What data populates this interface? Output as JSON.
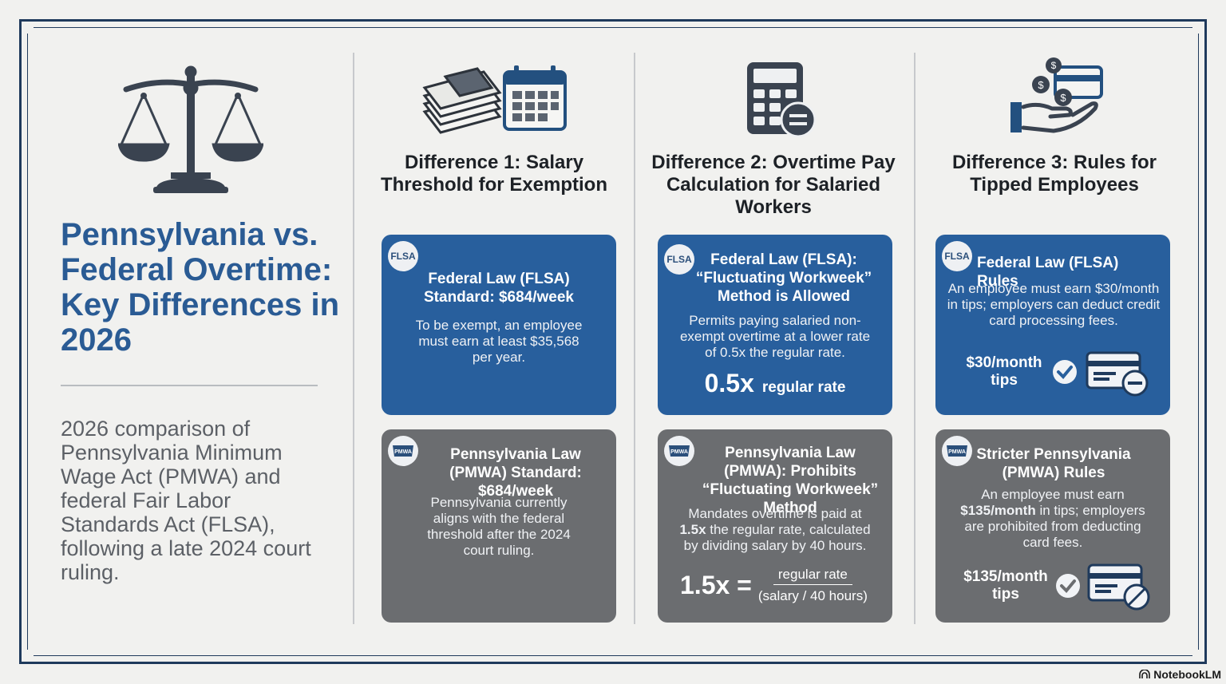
{
  "title": "Pennsylvania vs. Federal Overtime: Key Differences in 2026",
  "subtitle": "2026 comparison of Pennsylvania Minimum Wage Act (PMWA) and federal Fair Labor Standards Act (FLSA), following a late 2024 court ruling.",
  "columns": [
    {
      "heading": "Difference 1: Salary Threshold for Exemption",
      "icon": "money-calendar-icon",
      "federal": {
        "badge": "FLSA",
        "title": "Federal Law (FLSA) Standard: $684/week",
        "body": "To be exempt, an employee must earn at least $35,568 per year."
      },
      "state": {
        "badge": "PMWA",
        "title": "Pennsylvania Law (PMWA) Standard: $684/week",
        "body": "Pennsylvania currently aligns with the federal threshold after the 2024 court ruling."
      }
    },
    {
      "heading": "Difference 2: Overtime Pay Calculation for Salaried Workers",
      "icon": "calculator-icon",
      "federal": {
        "badge": "FLSA",
        "title": "Federal Law (FLSA): “Fluctuating Workweek” Method is Allowed",
        "body": "Permits paying salaried non-exempt overtime at a lower rate of 0.5x the regular rate.",
        "formula_big": "0.5x",
        "formula_text": "regular rate"
      },
      "state": {
        "badge": "PMWA",
        "title": "Pennsylvania Law (PMWA): Prohibits “Fluctuating Workweek” Method",
        "body_pre": "Mandates overtime is paid at ",
        "body_bold": "1.5x",
        "body_post": " the regular rate, calculated by dividing salary by 40 hours.",
        "formula_big": "1.5x =",
        "formula_num": "regular rate",
        "formula_den": "(salary / 40 hours)"
      }
    },
    {
      "heading": "Difference 3: Rules for Tipped Employees",
      "icon": "hand-coins-card-icon",
      "federal": {
        "badge": "FLSA",
        "title": "Federal Law (FLSA) Rules",
        "body": "An employee must earn $30/month in tips; employers can deduct credit card processing fees.",
        "tips_label": "$30/month tips"
      },
      "state": {
        "badge": "PMWA",
        "title": "Stricter Pennsylvania (PMWA) Rules",
        "body_pre": "An employee must earn ",
        "body_bold": "$135/month",
        "body_post": " in tips; employers are prohibited from deducting card fees.",
        "tips_label": "$135/month tips"
      }
    }
  ],
  "footer": "NotebookLM",
  "colors": {
    "accent": "#285f9d",
    "gray_card": "#6b6d70",
    "title": "#2a5b94",
    "frame": "#1f3a5c"
  }
}
